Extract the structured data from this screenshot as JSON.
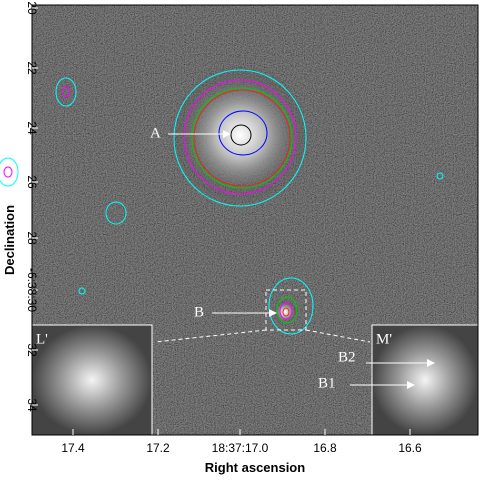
{
  "figure": {
    "x_axis": {
      "label": "Right ascension",
      "ticks": [
        "17.4",
        "17.2",
        "18:37:17.0",
        "16.8",
        "16.6"
      ]
    },
    "y_axis": {
      "label": "Declination",
      "ticks": [
        "20",
        "22",
        "24",
        "26",
        "28",
        "-6:38:30",
        "32",
        "34"
      ]
    },
    "annotations": [
      "A",
      "B",
      "B2",
      "B1"
    ],
    "insets": [
      "L'",
      "M'"
    ]
  }
}
